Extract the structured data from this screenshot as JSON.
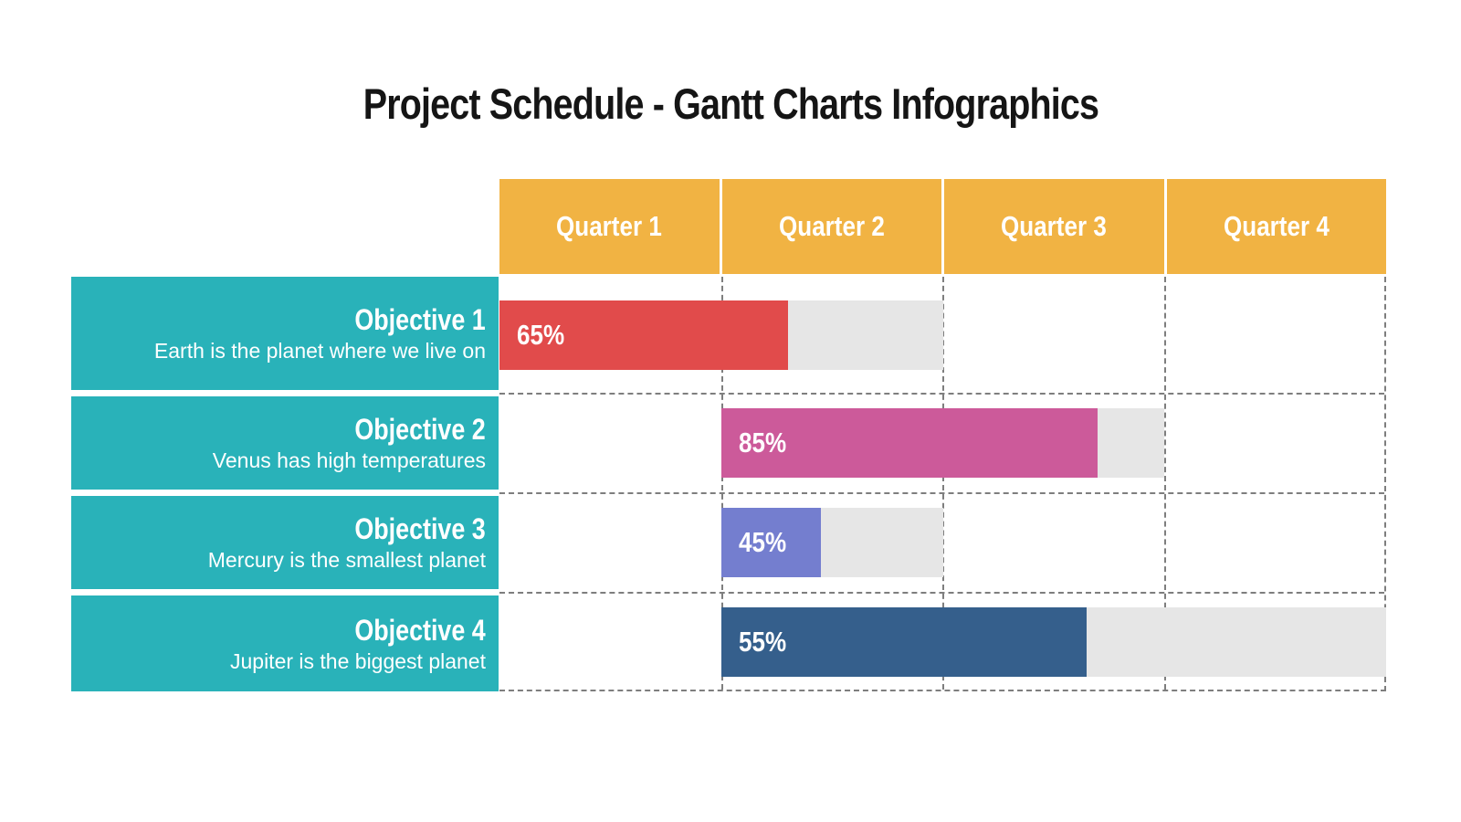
{
  "page": {
    "title": "Project Schedule - Gantt Charts Infographics"
  },
  "colors": {
    "header_bg": "#F1B343",
    "row_bg": "#29B2B9",
    "track_bg": "#E6E6E6",
    "grid_dash": "#7E7E7E",
    "title_text": "#151515",
    "text_on_color": "#FFFFFF",
    "bar_red": "#E14B4B",
    "bar_pink": "#CC5A9A",
    "bar_purple": "#747ECF",
    "bar_blue": "#355F8C"
  },
  "table": {
    "columns": [
      "Quarter 1",
      "Quarter 2",
      "Quarter 3",
      "Quarter 4"
    ],
    "rows": [
      {
        "label": "Objective 1",
        "description": "Earth is the planet where we live on",
        "percent_label": "65%",
        "percent": 65,
        "start_col": 0,
        "span_cols": 2,
        "color": "#E14B4B"
      },
      {
        "label": "Objective 2",
        "description": "Venus has high temperatures",
        "percent_label": "85%",
        "percent": 85,
        "start_col": 1,
        "span_cols": 2,
        "color": "#CC5A9A"
      },
      {
        "label": "Objective 3",
        "description": "Mercury is the smallest planet",
        "percent_label": "45%",
        "percent": 45,
        "start_col": 1,
        "span_cols": 1,
        "color": "#747ECF"
      },
      {
        "label": "Objective 4",
        "description": "Jupiter is the biggest planet",
        "percent_label": "55%",
        "percent": 55,
        "start_col": 1,
        "span_cols": 3,
        "color": "#355F8C"
      }
    ]
  },
  "chart_data": {
    "type": "bar",
    "subtype": "gantt-progress",
    "title": "Project Schedule - Gantt Charts Infographics",
    "categories": [
      "Objective 1",
      "Objective 2",
      "Objective 3",
      "Objective 4"
    ],
    "x_columns": [
      "Quarter 1",
      "Quarter 2",
      "Quarter 3",
      "Quarter 4"
    ],
    "bars": [
      {
        "task": "Objective 1",
        "description": "Earth is the planet where we live on",
        "start_quarter": "Quarter 1",
        "end_quarter": "Quarter 2",
        "progress_percent": 65,
        "color": "#E14B4B"
      },
      {
        "task": "Objective 2",
        "description": "Venus has high temperatures",
        "start_quarter": "Quarter 2",
        "end_quarter": "Quarter 3",
        "progress_percent": 85,
        "color": "#CC5A9A"
      },
      {
        "task": "Objective 3",
        "description": "Mercury is the smallest planet",
        "start_quarter": "Quarter 2",
        "end_quarter": "Quarter 2",
        "progress_percent": 45,
        "color": "#747ECF"
      },
      {
        "task": "Objective 4",
        "description": "Jupiter is the biggest planet",
        "start_quarter": "Quarter 2",
        "end_quarter": "Quarter 4",
        "progress_percent": 55,
        "color": "#355F8C"
      }
    ],
    "legend": "none",
    "grid": "dashed",
    "data_labels": "progress percent shown inside filled bar segment"
  }
}
